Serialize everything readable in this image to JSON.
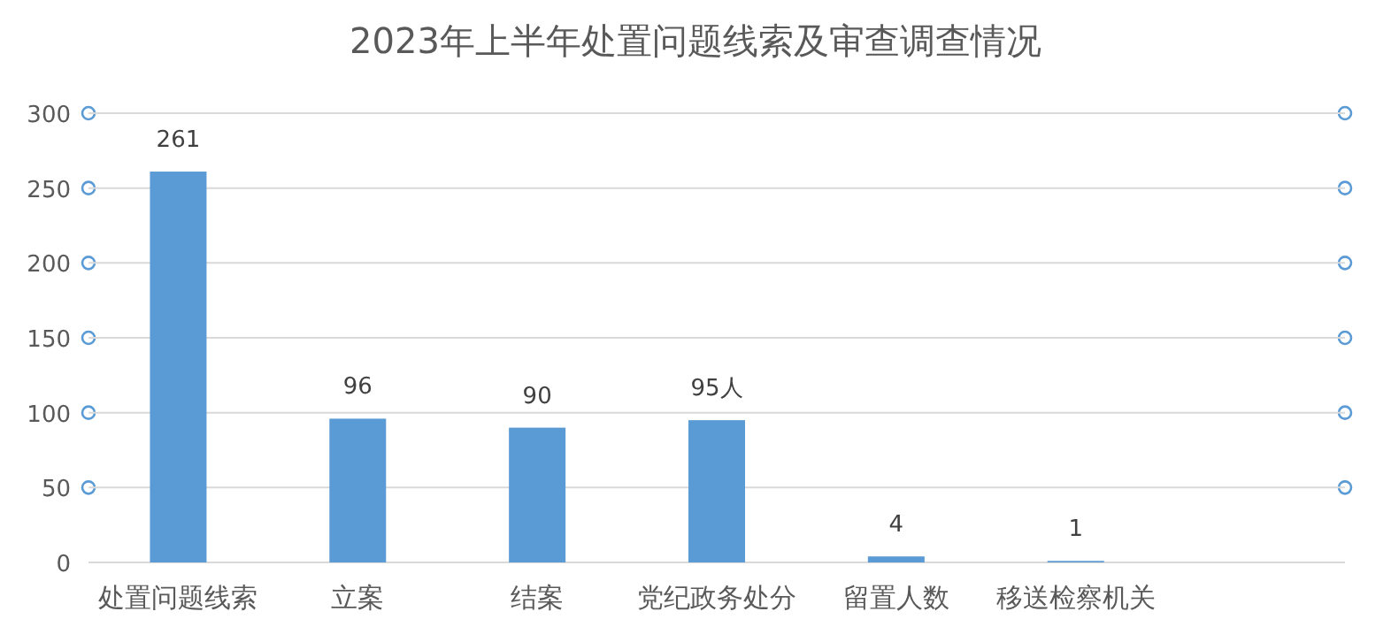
{
  "chart_data": {
    "type": "bar",
    "title": "2023年上半年处置问题线索及审查调查情况",
    "categories": [
      "处置问题线索",
      "立案",
      "结案",
      "党纪政务处分",
      "留置人数",
      "移送检察机关",
      null
    ],
    "values": [
      261,
      96,
      90,
      95,
      4,
      1,
      null
    ],
    "value_labels": [
      "261",
      "96",
      "90",
      "95人",
      "4",
      "1",
      null
    ],
    "color": "#5b9bd5",
    "ylim": [
      0,
      300
    ],
    "yticks": [
      0,
      50,
      100,
      150,
      200,
      250,
      300
    ],
    "grid": "y"
  }
}
